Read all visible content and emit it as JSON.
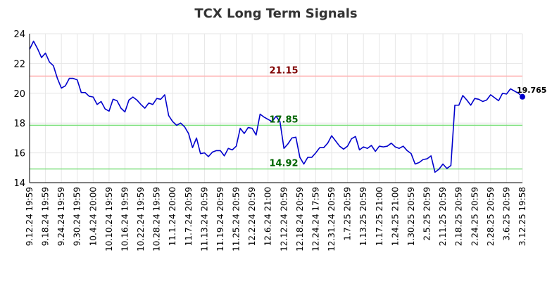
{
  "chart_data": {
    "type": "line",
    "title": "TCX Long Term Signals",
    "xlabel": "",
    "ylabel": "",
    "ylim": [
      14,
      24
    ],
    "yticks": [
      "14",
      "16",
      "18",
      "20",
      "22",
      "24"
    ],
    "grid": true,
    "x_tick_labels": [
      "9.12.24 19:59",
      "9.18.24 19:59",
      "9.24.24 19:59",
      "9.30.24 19:59",
      "10.4.24 20:00",
      "10.10.24 19:59",
      "10.16.24 19:59",
      "10.22.24 19:59",
      "10.28.24 19:59",
      "11.1.24 20:00",
      "11.7.24 20:59",
      "11.13.24 20:59",
      "11.19.24 20:59",
      "11.25.24 20:59",
      "12.2.24 20:59",
      "12.6.24 21:00",
      "12.12.24 20:59",
      "12.18.24 20:59",
      "12.24.24 17:59",
      "12.31.24 20:59",
      "1.7.25 20:59",
      "1.13.25 20:59",
      "1.17.25 21:00",
      "1.24.25 21:00",
      "1.30.25 20:59",
      "2.5.25 20:59",
      "2.11.25 20:59",
      "2.18.25 20:59",
      "2.24.25 20:59",
      "2.28.25 20:59",
      "3.6.25 20:59",
      "3.12.25 19:58"
    ],
    "series": [
      {
        "color": "#0000cc",
        "values": [
          22.95,
          23.5,
          23.0,
          22.4,
          22.7,
          22.1,
          21.85,
          21.0,
          20.35,
          20.5,
          21.0,
          21.0,
          20.9,
          20.05,
          20.05,
          19.8,
          19.75,
          19.25,
          19.45,
          18.95,
          18.8,
          19.6,
          19.5,
          19.0,
          18.75,
          19.55,
          19.75,
          19.55,
          19.25,
          19.0,
          19.35,
          19.25,
          19.65,
          19.6,
          19.9,
          18.5,
          18.1,
          17.85,
          18.0,
          17.75,
          17.3,
          16.35,
          17.0,
          15.95,
          16.0,
          15.75,
          16.05,
          16.15,
          16.15,
          15.8,
          16.3,
          16.2,
          16.45,
          17.65,
          17.3,
          17.7,
          17.65,
          17.2,
          18.6,
          18.4,
          18.25,
          18.1,
          18.45,
          18.1,
          16.3,
          16.6,
          17.0,
          17.05,
          15.7,
          15.25,
          15.7,
          15.7,
          16.0,
          16.35,
          16.35,
          16.65,
          17.15,
          16.8,
          16.45,
          16.25,
          16.45,
          16.95,
          17.1,
          16.2,
          16.4,
          16.3,
          16.5,
          16.1,
          16.45,
          16.4,
          16.45,
          16.65,
          16.4,
          16.3,
          16.45,
          16.15,
          15.95,
          15.25,
          15.35,
          15.55,
          15.6,
          15.8,
          14.7,
          14.9,
          15.25,
          14.95,
          15.15,
          19.2,
          19.2,
          19.85,
          19.55,
          19.2,
          19.65,
          19.6,
          19.45,
          19.55,
          19.9,
          19.7,
          19.5,
          20.0,
          19.95,
          20.3,
          20.15,
          20.0,
          19.765
        ]
      }
    ],
    "horizontal_lines": [
      {
        "value": 21.15,
        "label": "21.15",
        "line_color": "#ffb3b3",
        "label_color": "#800000"
      },
      {
        "value": 17.85,
        "label": "17.85",
        "line_color": "#80e080",
        "label_color": "#006400"
      },
      {
        "value": 14.92,
        "label": "14.92",
        "line_color": "#80e080",
        "label_color": "#006400"
      }
    ],
    "last_value_label": "19.765"
  }
}
